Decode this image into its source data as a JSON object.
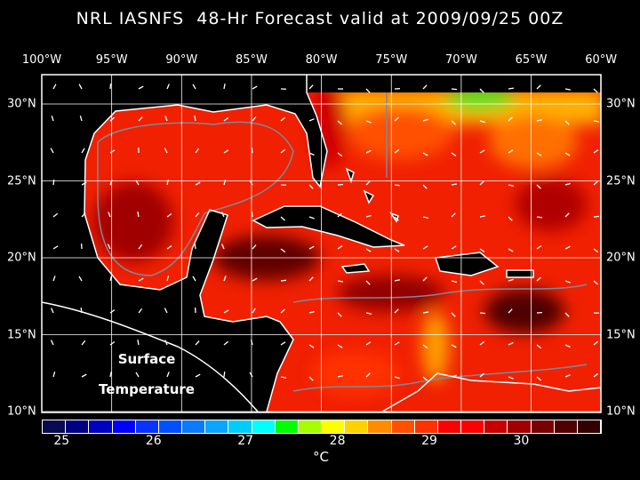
{
  "title": "NRL IASNFS  48-Hr Forecast valid at 2009/09/25 00Z",
  "lon_labels": [
    "100°W",
    "95°W",
    "90°W",
    "85°W",
    "80°W",
    "75°W",
    "70°W",
    "65°W",
    "60°W"
  ],
  "lat_labels": [
    "30°N",
    "25°N",
    "20°N",
    "15°N",
    "10°N"
  ],
  "overlay": {
    "line1": "Surface",
    "line2": "Temperature"
  },
  "colorbar": {
    "ticks": [
      "25",
      "26",
      "27",
      "28",
      "29",
      "30"
    ],
    "unit": "°C",
    "colors": [
      "#0a0a50",
      "#000080",
      "#0000c0",
      "#0000ff",
      "#0a32ff",
      "#0050ff",
      "#0a7aff",
      "#0aa5ff",
      "#00ccff",
      "#00ffff",
      "#00ff00",
      "#a5ff00",
      "#ffff00",
      "#ffd200",
      "#ff8c00",
      "#ff5000",
      "#ff3200",
      "#ff0000",
      "#ff0000",
      "#c80000",
      "#a00000",
      "#780000",
      "#500000",
      "#320000"
    ]
  },
  "colors": {
    "ocean": "#ff2000",
    "coast": "#ffffff",
    "grid": "#ffffff",
    "contour": "#7a8a9a"
  }
}
